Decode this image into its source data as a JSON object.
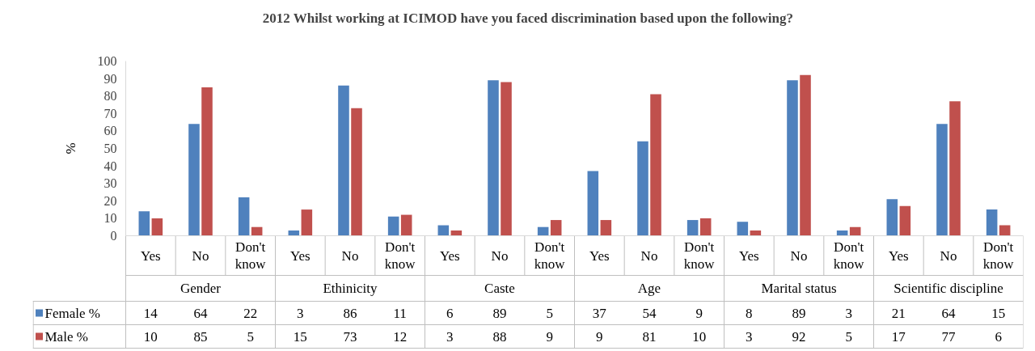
{
  "chart_data": {
    "type": "bar",
    "title": "2012 Whilst working at ICIMOD have you faced discrimination based upon the following?",
    "ylabel": "%",
    "categories": [
      "Yes",
      "No",
      "Don't know",
      "Yes",
      "No",
      "Don't know",
      "Yes",
      "No",
      "Don't know",
      "Yes",
      "No",
      "Don't know",
      "Yes",
      "No",
      "Don't know",
      "Yes",
      "No",
      "Don't know"
    ],
    "annotations": [
      "Gender",
      "Ethinicity",
      "Caste",
      "Age",
      "Marital status",
      "Scientific discipline"
    ],
    "series": [
      {
        "name": "Female %",
        "color": "#4f81bd",
        "values": [
          14,
          64,
          22,
          3,
          86,
          11,
          6,
          89,
          5,
          37,
          54,
          9,
          8,
          89,
          3,
          21,
          64,
          15
        ]
      },
      {
        "name": "Male %",
        "color": "#c0504d",
        "values": [
          10,
          85,
          5,
          15,
          73,
          12,
          3,
          88,
          9,
          9,
          81,
          10,
          3,
          92,
          5,
          17,
          77,
          6
        ]
      }
    ],
    "ylim": [
      0,
      100
    ],
    "yticks": [
      0,
      10,
      20,
      30,
      40,
      50,
      60,
      70,
      80,
      90,
      100
    ],
    "grid": false,
    "legend": "bottom",
    "data_labels": true
  }
}
